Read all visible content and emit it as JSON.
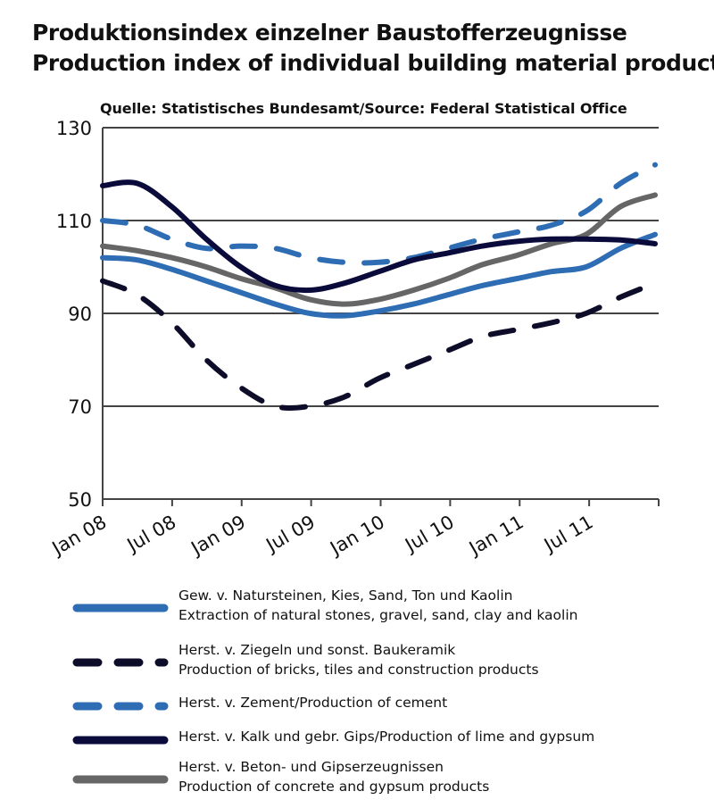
{
  "title_de": "Produktionsindex einzelner Baustofferzeugnisse",
  "title_en": "Production index of individual building material products",
  "source": "Quelle: Statistisches Bundesamt/Source: Federal Statistical Office",
  "chart_data": {
    "type": "line",
    "x": [
      "Jan 08",
      "Apr 08",
      "Jul 08",
      "Oct 08",
      "Jan 09",
      "Apr 09",
      "Jul 09",
      "Oct 09",
      "Jan 10",
      "Apr 10",
      "Jul 10",
      "Oct 10",
      "Jan 11",
      "Apr 11",
      "Jul 11",
      "Oct 11",
      "Dec 11"
    ],
    "x_ticks": [
      "Jan 08",
      "Jul 08",
      "Jan 09",
      "Jul 09",
      "Jan 10",
      "Jul 10",
      "Jan 11",
      "Jul 11"
    ],
    "ylim": [
      50,
      130
    ],
    "y_ticks": [
      50,
      70,
      90,
      110,
      130
    ],
    "grid": true,
    "legend_position": "bottom",
    "series": [
      {
        "name_de": "Gew. v. Natursteinen, Kies, Sand, Ton und Kaolin",
        "name_en": "Extraction of natural stones, gravel, sand, clay and kaolin",
        "color": "#2e6db4",
        "dash": "solid",
        "values": [
          102,
          101.5,
          99.5,
          97,
          94.5,
          92,
          90,
          89.5,
          90.5,
          92,
          94,
          96,
          97.5,
          99,
          100,
          104,
          107
        ]
      },
      {
        "name_de": "Herst. v. Ziegeln und sonst. Baukeramik",
        "name_en": "Production of bricks, tiles and construction products",
        "color": "#0d0d2a",
        "dash": "dashed",
        "values": [
          97,
          94,
          88,
          80,
          74,
          70,
          70,
          72,
          76,
          79,
          82,
          85,
          86.5,
          88,
          90,
          93.5,
          96.5
        ]
      },
      {
        "name": "Herst. v. Zement/Production of cement",
        "color": "#2e6db4",
        "dash": "dashed",
        "values": [
          110,
          109,
          106,
          104,
          104.5,
          104,
          102,
          101,
          101,
          102,
          104,
          106,
          107.5,
          109,
          112,
          118,
          122
        ]
      },
      {
        "name": "Herst. v. Kalk und gebr. Gips/Production of lime and gypsum",
        "color": "#0b0b3b",
        "dash": "solid",
        "values": [
          117.5,
          118,
          113,
          106,
          100,
          96,
          95,
          96.5,
          99,
          101.5,
          103,
          104.5,
          105.5,
          106,
          106,
          105.8,
          105
        ]
      },
      {
        "name_de": "Herst. v. Beton- und Gipserzeugnissen",
        "name_en": "Production of concrete and gypsum products",
        "color": "#666666",
        "dash": "solid",
        "values": [
          104.5,
          103.5,
          102,
          100,
          97.5,
          95.5,
          93,
          92,
          93,
          95,
          97.5,
          100.5,
          102.5,
          105,
          107,
          113,
          115.5
        ]
      }
    ]
  }
}
